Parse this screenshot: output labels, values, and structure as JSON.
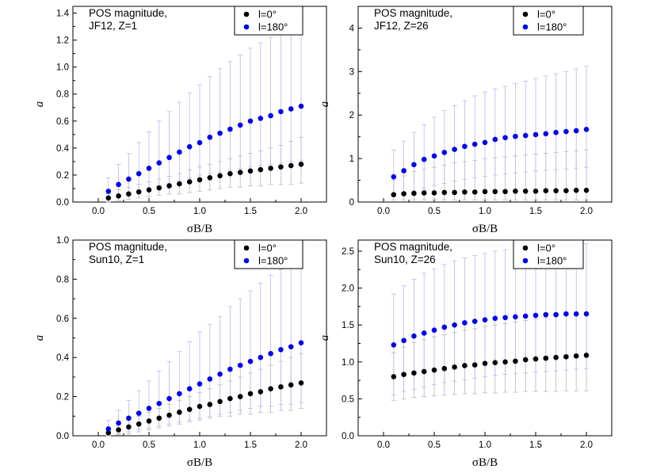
{
  "chart_data": [
    {
      "type": "scatter",
      "title_lines": [
        "POS magnitude,",
        "JF12, Z=1"
      ],
      "xlabel": "σB/B",
      "ylabel": "a",
      "xlim": [
        -0.25,
        2.25
      ],
      "ylim": [
        0,
        1.45
      ],
      "xticks": [
        "0.0",
        "0.5",
        "1.0",
        "1.5",
        "2.0"
      ],
      "yticks": [
        "0.0",
        "0.2",
        "0.4",
        "0.6",
        "0.8",
        "1.0",
        "1.2",
        "1.4"
      ],
      "legend_position": "top-right",
      "x": [
        0.1,
        0.2,
        0.3,
        0.4,
        0.5,
        0.6,
        0.7,
        0.8,
        0.9,
        1.0,
        1.1,
        1.2,
        1.3,
        1.4,
        1.5,
        1.6,
        1.7,
        1.8,
        1.9,
        2.0
      ],
      "series": [
        {
          "name": "l=0°",
          "color": "#000000",
          "values": [
            0.03,
            0.045,
            0.06,
            0.075,
            0.09,
            0.105,
            0.12,
            0.135,
            0.15,
            0.165,
            0.18,
            0.195,
            0.21,
            0.22,
            0.23,
            0.24,
            0.25,
            0.26,
            0.27,
            0.28
          ],
          "error_upper": [
            0.06,
            0.09,
            0.11,
            0.13,
            0.15,
            0.17,
            0.19,
            0.21,
            0.24,
            0.26,
            0.28,
            0.3,
            0.32,
            0.34,
            0.36,
            0.38,
            0.4,
            0.42,
            0.45,
            0.48
          ],
          "error_lower": [
            0.0,
            0.01,
            0.02,
            0.03,
            0.04,
            0.05,
            0.06,
            0.06,
            0.07,
            0.08,
            0.09,
            0.1,
            0.11,
            0.11,
            0.12,
            0.12,
            0.13,
            0.13,
            0.13,
            0.14
          ]
        },
        {
          "name": "l=180°",
          "color": "#0000ee",
          "values": [
            0.08,
            0.13,
            0.17,
            0.21,
            0.25,
            0.29,
            0.33,
            0.37,
            0.41,
            0.44,
            0.48,
            0.51,
            0.54,
            0.57,
            0.6,
            0.62,
            0.64,
            0.67,
            0.69,
            0.71
          ],
          "error_upper": [
            0.18,
            0.28,
            0.36,
            0.44,
            0.52,
            0.6,
            0.67,
            0.74,
            0.81,
            0.87,
            0.93,
            0.99,
            1.04,
            1.09,
            1.14,
            1.18,
            1.22,
            1.27,
            1.31,
            1.35
          ],
          "error_lower": [
            0.02,
            0.04,
            0.06,
            0.08,
            0.1,
            0.12,
            0.14,
            0.16,
            0.18,
            0.2,
            0.21,
            0.22,
            0.24,
            0.25,
            0.26,
            0.27,
            0.28,
            0.29,
            0.3,
            0.31
          ]
        }
      ]
    },
    {
      "type": "scatter",
      "title_lines": [
        "POS magnitude,",
        "JF12, Z=26"
      ],
      "xlabel": "σB/B",
      "ylabel": "a",
      "xlim": [
        -0.25,
        2.25
      ],
      "ylim": [
        0,
        4.5
      ],
      "xticks": [
        "0.0",
        "0.5",
        "1.0",
        "1.5",
        "2.0"
      ],
      "yticks": [
        "0",
        "1",
        "2",
        "3",
        "4"
      ],
      "legend_position": "top-right",
      "x": [
        0.1,
        0.2,
        0.3,
        0.4,
        0.5,
        0.6,
        0.7,
        0.8,
        0.9,
        1.0,
        1.1,
        1.2,
        1.3,
        1.4,
        1.5,
        1.6,
        1.7,
        1.8,
        1.9,
        2.0
      ],
      "series": [
        {
          "name": "l=0°",
          "color": "#000000",
          "values": [
            0.17,
            0.19,
            0.2,
            0.21,
            0.21,
            0.22,
            0.22,
            0.23,
            0.23,
            0.24,
            0.24,
            0.24,
            0.25,
            0.25,
            0.25,
            0.26,
            0.26,
            0.26,
            0.27,
            0.27
          ],
          "error_upper": [
            0.5,
            0.6,
            0.7,
            0.75,
            0.8,
            0.85,
            0.9,
            0.93,
            0.96,
            1.0,
            1.02,
            1.04,
            1.06,
            1.08,
            1.1,
            1.12,
            1.14,
            1.16,
            1.18,
            1.2
          ],
          "error_lower": [
            0.05,
            0.05,
            0.05,
            0.05,
            0.05,
            0.05,
            0.05,
            0.05,
            0.05,
            0.05,
            0.05,
            0.05,
            0.05,
            0.05,
            0.05,
            0.05,
            0.05,
            0.05,
            0.05,
            0.05
          ]
        },
        {
          "name": "l=180°",
          "color": "#0000ee",
          "values": [
            0.58,
            0.72,
            0.86,
            0.98,
            1.06,
            1.14,
            1.21,
            1.28,
            1.33,
            1.37,
            1.44,
            1.48,
            1.51,
            1.53,
            1.55,
            1.57,
            1.6,
            1.62,
            1.64,
            1.67
          ],
          "error_upper": [
            1.2,
            1.4,
            1.6,
            1.78,
            1.95,
            2.1,
            2.22,
            2.33,
            2.44,
            2.53,
            2.6,
            2.66,
            2.72,
            2.78,
            2.84,
            2.9,
            2.95,
            3.0,
            3.06,
            3.12
          ],
          "error_lower": [
            0.12,
            0.2,
            0.26,
            0.32,
            0.38,
            0.43,
            0.48,
            0.52,
            0.56,
            0.59,
            0.62,
            0.65,
            0.67,
            0.69,
            0.71,
            0.73,
            0.74,
            0.76,
            0.78,
            0.8
          ]
        }
      ]
    },
    {
      "type": "scatter",
      "title_lines": [
        "POS magnitude,",
        "Sun10, Z=1"
      ],
      "xlabel": "σB/B",
      "ylabel": "a",
      "xlim": [
        -0.25,
        2.25
      ],
      "ylim": [
        0,
        1.0
      ],
      "xticks": [
        "0.0",
        "0.5",
        "1.0",
        "1.5",
        "2.0"
      ],
      "yticks": [
        "0.0",
        "0.2",
        "0.4",
        "0.6",
        "0.8",
        "1.0"
      ],
      "legend_position": "top-right",
      "x": [
        0.1,
        0.2,
        0.3,
        0.4,
        0.5,
        0.6,
        0.7,
        0.8,
        0.9,
        1.0,
        1.1,
        1.2,
        1.3,
        1.4,
        1.5,
        1.6,
        1.7,
        1.8,
        1.9,
        2.0
      ],
      "series": [
        {
          "name": "l=0°",
          "color": "#000000",
          "values": [
            0.015,
            0.03,
            0.045,
            0.06,
            0.075,
            0.09,
            0.105,
            0.12,
            0.135,
            0.15,
            0.16,
            0.175,
            0.19,
            0.2,
            0.215,
            0.225,
            0.24,
            0.25,
            0.26,
            0.27
          ],
          "error_upper": [
            0.04,
            0.06,
            0.08,
            0.1,
            0.12,
            0.14,
            0.16,
            0.18,
            0.2,
            0.22,
            0.24,
            0.26,
            0.28,
            0.3,
            0.32,
            0.34,
            0.36,
            0.38,
            0.4,
            0.42
          ],
          "error_lower": [
            0.0,
            0.005,
            0.01,
            0.02,
            0.03,
            0.04,
            0.05,
            0.06,
            0.07,
            0.08,
            0.09,
            0.1,
            0.1,
            0.11,
            0.11,
            0.12,
            0.12,
            0.13,
            0.13,
            0.14
          ]
        },
        {
          "name": "l=180°",
          "color": "#0000ee",
          "values": [
            0.035,
            0.065,
            0.09,
            0.115,
            0.14,
            0.165,
            0.19,
            0.215,
            0.24,
            0.265,
            0.29,
            0.315,
            0.34,
            0.36,
            0.38,
            0.4,
            0.42,
            0.44,
            0.455,
            0.475
          ],
          "error_upper": [
            0.08,
            0.13,
            0.18,
            0.23,
            0.28,
            0.33,
            0.38,
            0.43,
            0.48,
            0.53,
            0.57,
            0.61,
            0.66,
            0.7,
            0.74,
            0.78,
            0.82,
            0.85,
            0.88,
            0.92
          ],
          "error_lower": [
            0.0,
            0.01,
            0.02,
            0.03,
            0.04,
            0.05,
            0.06,
            0.07,
            0.08,
            0.09,
            0.1,
            0.11,
            0.12,
            0.13,
            0.14,
            0.15,
            0.15,
            0.16,
            0.16,
            0.17
          ]
        }
      ]
    },
    {
      "type": "scatter",
      "title_lines": [
        "POS magnitude,",
        "Sun10, Z=26"
      ],
      "xlabel": "σB/B",
      "ylabel": "a",
      "xlim": [
        -0.25,
        2.25
      ],
      "ylim": [
        0,
        2.65
      ],
      "xticks": [
        "0.0",
        "0.5",
        "1.0",
        "1.5",
        "2.0"
      ],
      "yticks": [
        "0.0",
        "0.5",
        "1.0",
        "1.5",
        "2.0",
        "2.5"
      ],
      "legend_position": "top-right",
      "x": [
        0.1,
        0.2,
        0.3,
        0.4,
        0.5,
        0.6,
        0.7,
        0.8,
        0.9,
        1.0,
        1.1,
        1.2,
        1.3,
        1.4,
        1.5,
        1.6,
        1.7,
        1.8,
        1.9,
        2.0
      ],
      "series": [
        {
          "name": "l=0°",
          "color": "#000000",
          "values": [
            0.8,
            0.83,
            0.85,
            0.87,
            0.89,
            0.91,
            0.93,
            0.95,
            0.96,
            0.98,
            0.99,
            1.0,
            1.01,
            1.03,
            1.04,
            1.05,
            1.06,
            1.07,
            1.08,
            1.09
          ],
          "error_upper": [
            1.12,
            1.2,
            1.26,
            1.3,
            1.34,
            1.37,
            1.4,
            1.43,
            1.45,
            1.48,
            1.5,
            1.52,
            1.54,
            1.56,
            1.58,
            1.6,
            1.62,
            1.63,
            1.65,
            1.67
          ],
          "error_lower": [
            0.48,
            0.5,
            0.52,
            0.53,
            0.54,
            0.55,
            0.56,
            0.57,
            0.57,
            0.58,
            0.58,
            0.59,
            0.59,
            0.6,
            0.6,
            0.6,
            0.6,
            0.61,
            0.61,
            0.61
          ]
        },
        {
          "name": "l=180°",
          "color": "#0000ee",
          "values": [
            1.23,
            1.29,
            1.35,
            1.39,
            1.43,
            1.47,
            1.5,
            1.53,
            1.55,
            1.57,
            1.59,
            1.6,
            1.61,
            1.62,
            1.63,
            1.64,
            1.64,
            1.65,
            1.65,
            1.65
          ],
          "error_upper": [
            1.92,
            2.03,
            2.12,
            2.2,
            2.26,
            2.32,
            2.37,
            2.41,
            2.44,
            2.47,
            2.5,
            2.52,
            2.54,
            2.55,
            2.56,
            2.57,
            2.58,
            2.59,
            2.6,
            2.6
          ],
          "error_lower": [
            0.55,
            0.6,
            0.63,
            0.66,
            0.69,
            0.72,
            0.74,
            0.76,
            0.78,
            0.8,
            0.82,
            0.83,
            0.84,
            0.85,
            0.86,
            0.87,
            0.88,
            0.89,
            0.9,
            0.91
          ]
        }
      ]
    }
  ]
}
